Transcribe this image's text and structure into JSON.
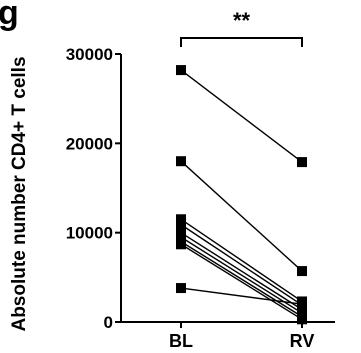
{
  "panel_label": "g",
  "chart_data": {
    "type": "scatter",
    "style": "paired-before-after",
    "categories": [
      "BL",
      "RV"
    ],
    "ylabel": "Absolute number CD4+ T cells",
    "ylim": [
      0,
      30000
    ],
    "yticks": [
      0,
      10000,
      20000,
      30000
    ],
    "grid": false,
    "significance": "**",
    "pairs": [
      {
        "BL": 28200,
        "RV": 17900
      },
      {
        "BL": 18000,
        "RV": 5700
      },
      {
        "BL": 11500,
        "RV": 2300
      },
      {
        "BL": 10900,
        "RV": 1900
      },
      {
        "BL": 10000,
        "RV": 1400
      },
      {
        "BL": 9500,
        "RV": 1000
      },
      {
        "BL": 9000,
        "RV": 600
      },
      {
        "BL": 8700,
        "RV": 300
      },
      {
        "BL": 3800,
        "RV": 2000
      }
    ],
    "marker": "square",
    "color": "#000000"
  }
}
